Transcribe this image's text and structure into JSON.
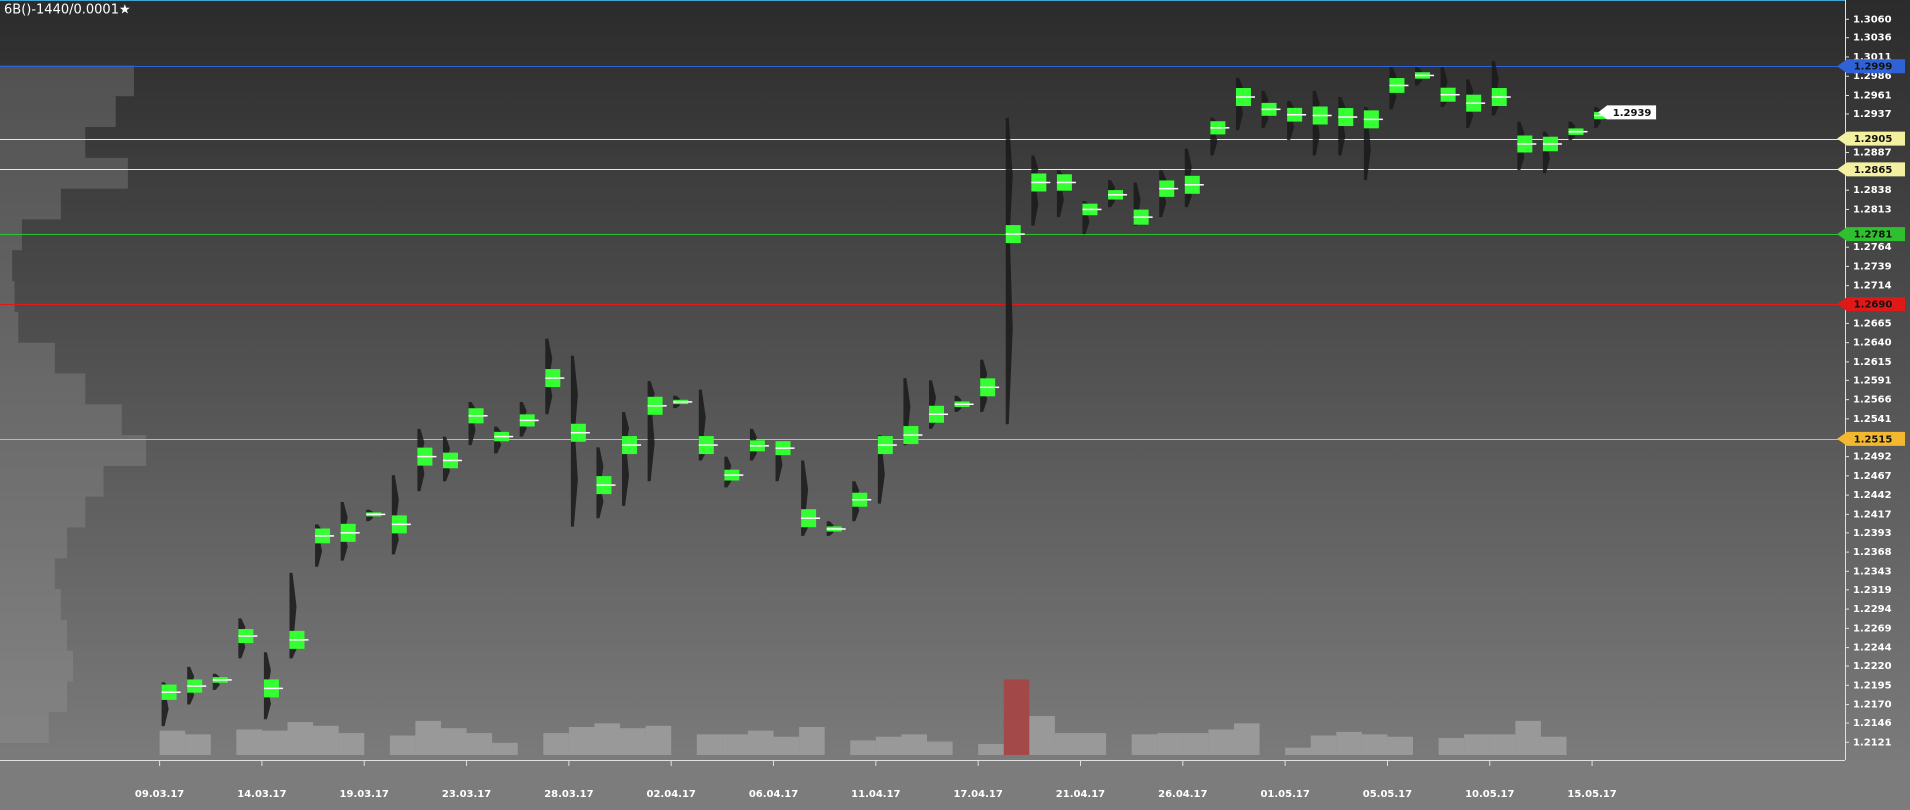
{
  "chart_data": {
    "type": "profile-candles",
    "title": "6B()-1440/0.0001★",
    "categories": [
      "09.03.17",
      null,
      null,
      null,
      "14.03.17",
      null,
      null,
      null,
      "19.03.17",
      null,
      null,
      null,
      "23.03.17",
      null,
      null,
      null,
      "28.03.17",
      null,
      null,
      null,
      "02.04.17",
      null,
      null,
      null,
      "06.04.17",
      null,
      null,
      null,
      "11.04.17",
      null,
      null,
      null,
      "17.04.17",
      null,
      null,
      null,
      "21.04.17",
      null,
      null,
      null,
      "26.04.17",
      null,
      null,
      null,
      "01.05.17",
      null,
      null,
      null,
      "05.05.17",
      null,
      null,
      null,
      "10.05.17",
      null,
      null,
      null,
      "15.05.17"
    ],
    "high": [
      1.2199,
      1.2219,
      1.221,
      1.2282,
      1.2238,
      1.2341,
      1.2404,
      1.2433,
      1.2423,
      1.2468,
      1.2528,
      1.2518,
      1.2563,
      1.2531,
      1.2563,
      1.2645,
      1.2623,
      1.2504,
      1.255,
      1.259,
      1.2571,
      1.2579,
      1.2492,
      1.2528,
      1.2512,
      1.2487,
      1.2408,
      1.246,
      1.252,
      1.2594,
      1.2591,
      1.2571,
      1.2618,
      1.2932,
      1.2883,
      1.2864,
      1.2824,
      1.2851,
      1.2848,
      1.2864,
      1.2892,
      1.2932,
      1.2984,
      1.2967,
      1.2954,
      1.2967,
      1.2959,
      1.2946,
      1.2998,
      1.2998,
      1.2998,
      1.2982,
      1.3006,
      1.2927,
      1.2914,
      1.2927,
      1.2946
    ],
    "low": [
      1.2142,
      1.217,
      1.2189,
      1.223,
      1.2151,
      1.223,
      1.2349,
      1.2357,
      1.2408,
      1.2365,
      1.2447,
      1.246,
      1.2507,
      1.2496,
      1.2518,
      1.2547,
      1.2401,
      1.2412,
      1.2428,
      1.246,
      1.2555,
      1.2487,
      1.2452,
      1.2487,
      1.246,
      1.2389,
      1.2389,
      1.2408,
      1.2431,
      1.2507,
      1.2528,
      1.255,
      1.255,
      1.2534,
      1.2792,
      1.2803,
      1.2781,
      1.2816,
      1.2792,
      1.2803,
      1.2816,
      1.2883,
      1.2916,
      1.2919,
      1.2903,
      1.2883,
      1.2883,
      1.2851,
      1.2943,
      1.2974,
      1.2946,
      1.2919,
      1.2935,
      1.2864,
      1.286,
      1.2903,
      1.2919
    ],
    "poc": [
      1.2186,
      1.2194,
      1.2202,
      1.2259,
      1.2191,
      1.2254,
      1.2389,
      1.2393,
      1.2417,
      1.2404,
      1.2492,
      1.2487,
      1.2545,
      1.2518,
      1.2539,
      1.2594,
      1.2523,
      1.2455,
      1.2507,
      1.2558,
      1.2563,
      1.2507,
      1.2468,
      1.2506,
      1.2503,
      1.2412,
      1.2398,
      1.2436,
      1.2507,
      1.252,
      1.2547,
      1.256,
      1.2582,
      1.2781,
      1.2848,
      1.2848,
      1.2813,
      1.2832,
      1.2803,
      1.284,
      1.2845,
      1.2919,
      1.2959,
      1.2943,
      1.2936,
      1.2935,
      1.2933,
      1.293,
      1.2974,
      1.2987,
      1.2962,
      1.2951,
      1.2959,
      1.2898,
      1.2898,
      1.2914,
      1.2935
    ],
    "candle_color": "#1a1a1a",
    "poc_color": "#33ff33",
    "volume": [
      20,
      17,
      null,
      21,
      20,
      27,
      24,
      18,
      null,
      16,
      28,
      22,
      18,
      10,
      null,
      18,
      23,
      26,
      22,
      24,
      null,
      17,
      17,
      20,
      15,
      23,
      null,
      12,
      15,
      17,
      11,
      null,
      9,
      62,
      32,
      18,
      18,
      null,
      17,
      18,
      18,
      21,
      26,
      null,
      6,
      16,
      19,
      17,
      15,
      null,
      14,
      17,
      17,
      28,
      15,
      null,
      null
    ],
    "volume_colors": [
      "#a4a4a4",
      "#a4a4a4",
      "#a4a4a4",
      "#a4a4a4",
      "#a4a4a4",
      "#a4a4a4",
      "#a4a4a4",
      "#a4a4a4",
      "#a4a4a4",
      "#a4a4a4",
      "#a4a4a4",
      "#a4a4a4",
      "#a4a4a4",
      "#a4a4a4",
      "#a4a4a4",
      "#a4a4a4",
      "#a4a4a4",
      "#a4a4a4",
      "#a4a4a4",
      "#a4a4a4",
      "#a4a4a4",
      "#a4a4a4",
      "#a4a4a4",
      "#a4a4a4",
      "#a4a4a4",
      "#a4a4a4",
      "#a4a4a4",
      "#a4a4a4",
      "#a4a4a4",
      "#a4a4a4",
      "#a4a4a4",
      "#a4a4a4",
      "#a4a4a4",
      "#b23a3a",
      "#a4a4a4",
      "#a4a4a4",
      "#a4a4a4",
      "#a4a4a4",
      "#a4a4a4",
      "#a4a4a4",
      "#a4a4a4",
      "#a4a4a4",
      "#a4a4a4",
      "#a4a4a4",
      "#a4a4a4",
      "#a4a4a4",
      "#a4a4a4",
      "#a4a4a4",
      "#a4a4a4",
      "#a4a4a4",
      "#a4a4a4",
      "#a4a4a4",
      "#a4a4a4",
      "#a4a4a4",
      "#a4a4a4",
      "#a4a4a4",
      "#a4a4a4"
    ],
    "profile": {
      "prices": [
        1.214,
        1.218,
        1.222,
        1.226,
        1.23,
        1.234,
        1.238,
        1.242,
        1.246,
        1.25,
        1.254,
        1.258,
        1.262,
        1.266,
        1.27,
        1.274,
        1.278,
        1.282,
        1.286,
        1.29,
        1.294,
        1.298
      ],
      "values": [
        40,
        55,
        60,
        55,
        50,
        45,
        55,
        70,
        85,
        120,
        100,
        70,
        45,
        15,
        12,
        10,
        18,
        50,
        105,
        70,
        95,
        110
      ],
      "color": "#9a9a9a"
    },
    "levels": [
      {
        "value": 1.2999,
        "color": "#2f62d6"
      },
      {
        "value": 1.2905,
        "color": "#f3f0a0"
      },
      {
        "value": 1.2865,
        "color": "#f3f0a0"
      },
      {
        "value": 1.2781,
        "color": "#2fbf2f"
      },
      {
        "value": 1.269,
        "label": "1.2690",
        "color": "#e01818"
      },
      {
        "value": 1.2515,
        "color": "#f2b830"
      }
    ],
    "last_price": {
      "value": 1.2939,
      "color": "#ffffff"
    },
    "ylim": [
      1.2098,
      1.3085
    ],
    "yticks": [
      {
        "value": 1.306,
        "label": "1.3060"
      },
      1.3036,
      1.3011,
      1.2986,
      1.2961,
      1.2937,
      1.2887,
      1.2838,
      1.2813,
      1.2764,
      1.2739,
      1.2714,
      1.2665,
      {
        "value": 1.264,
        "label": "1.2640"
      },
      1.2615,
      1.2591,
      1.2566,
      1.2541,
      1.2492,
      1.2467,
      1.2442,
      1.2417,
      1.2393,
      1.2368,
      1.2343,
      1.2319,
      1.2294,
      1.2269,
      1.2244,
      {
        "value": 1.222,
        "label": "1.2220"
      },
      1.2195,
      {
        "value": 1.217,
        "label": "1.2170"
      },
      1.2146,
      1.2121
    ]
  }
}
